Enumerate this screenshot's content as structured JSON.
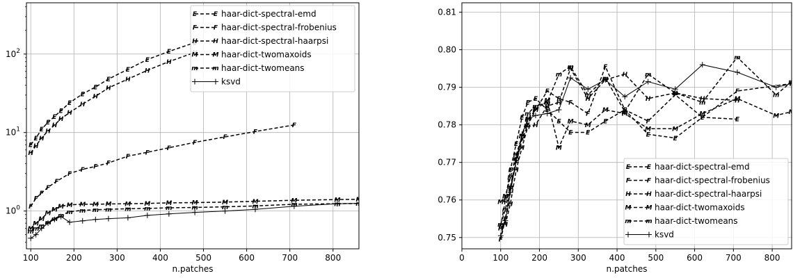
{
  "chart_data": [
    {
      "type": "line",
      "x_scale": "linear",
      "y_scale": "log",
      "xlabel": "n.patches",
      "ylabel": "",
      "xlim": [
        90,
        860
      ],
      "ylim": [
        0.33,
        450
      ],
      "x_ticks": [
        100,
        200,
        300,
        400,
        500,
        600,
        700,
        800
      ],
      "x_tick_labels": [
        "100",
        "200",
        "300",
        "400",
        "500",
        "600",
        "700",
        "800"
      ],
      "y_major_ticks": [
        1,
        10,
        100
      ],
      "y_tick_labels": [
        "10^0",
        "10^1",
        "10^2"
      ],
      "grid": true,
      "legend_position": "top-right",
      "series": [
        {
          "name": "haar-dict-spectral-emd",
          "marker": "E",
          "x": [
            100,
            112,
            125,
            140,
            155,
            170,
            190,
            220,
            250,
            280,
            325,
            370,
            420,
            480
          ],
          "y": [
            7.0,
            8.5,
            11.0,
            13.5,
            16.0,
            19.0,
            24.0,
            31.0,
            38.0,
            48.0,
            64.0,
            85.0,
            108.0,
            140.0
          ]
        },
        {
          "name": "haar-dict-spectral-frobenius",
          "marker": "F",
          "x": [
            100,
            112,
            125,
            140,
            160,
            190,
            220,
            250,
            280,
            325,
            370,
            420,
            480,
            550,
            620,
            710
          ],
          "y": [
            1.15,
            1.45,
            1.7,
            2.0,
            2.4,
            3.0,
            3.4,
            3.7,
            4.1,
            5.0,
            5.6,
            6.4,
            7.5,
            8.8,
            10.3,
            12.5
          ]
        },
        {
          "name": "haar-dict-spectral-haarpsi",
          "marker": "H",
          "x": [
            100,
            112,
            125,
            140,
            155,
            170,
            190,
            220,
            250,
            280,
            325,
            370,
            420,
            480
          ],
          "y": [
            5.5,
            6.8,
            8.5,
            10.5,
            12.5,
            15.0,
            18.0,
            23.0,
            29.0,
            37.0,
            48.0,
            62.0,
            80.0,
            105.0
          ]
        },
        {
          "name": "haar-dict-twomaxoids",
          "marker": "M",
          "x": [
            100,
            112,
            125,
            140,
            155,
            170,
            190,
            220,
            250,
            280,
            325,
            370,
            420,
            480,
            550,
            620,
            710,
            810,
            860
          ],
          "y": [
            0.6,
            0.7,
            0.8,
            0.95,
            1.05,
            1.15,
            1.2,
            1.22,
            1.22,
            1.23,
            1.24,
            1.25,
            1.27,
            1.28,
            1.3,
            1.33,
            1.37,
            1.4,
            1.41
          ]
        },
        {
          "name": "haar-dict-twomeans",
          "marker": "m",
          "x": [
            100,
            112,
            125,
            140,
            155,
            170,
            190,
            220,
            250,
            280,
            325,
            370,
            420,
            480,
            550,
            620,
            710,
            810,
            860
          ],
          "y": [
            0.55,
            0.6,
            0.65,
            0.72,
            0.8,
            0.88,
            0.98,
            1.02,
            1.04,
            1.05,
            1.07,
            1.08,
            1.1,
            1.11,
            1.13,
            1.16,
            1.22,
            1.24,
            1.25
          ]
        },
        {
          "name": "ksvd",
          "marker": "+",
          "x": [
            100,
            112,
            125,
            140,
            155,
            170,
            190,
            220,
            250,
            280,
            325,
            370,
            420,
            480,
            550,
            620,
            710,
            810,
            860
          ],
          "y": [
            0.45,
            0.5,
            0.6,
            0.7,
            0.78,
            0.85,
            0.72,
            0.75,
            0.78,
            0.8,
            0.82,
            0.88,
            0.92,
            0.96,
            1.0,
            1.05,
            1.15,
            1.24,
            1.25
          ]
        }
      ]
    },
    {
      "type": "line",
      "x_scale": "linear",
      "y_scale": "linear",
      "xlabel": "n.patches",
      "ylabel": "",
      "xlim": [
        0,
        850
      ],
      "ylim": [
        0.747,
        0.8125
      ],
      "x_ticks": [
        0,
        100,
        200,
        300,
        400,
        500,
        600,
        700,
        800
      ],
      "x_tick_labels": [
        "0",
        "100",
        "200",
        "300",
        "400",
        "500",
        "600",
        "700",
        "800"
      ],
      "y_ticks": [
        0.75,
        0.76,
        0.77,
        0.78,
        0.79,
        0.8,
        0.81
      ],
      "y_tick_labels": [
        "0.75",
        "0.76",
        "0.77",
        "0.78",
        "0.79",
        "0.80",
        "0.81"
      ],
      "grid": true,
      "legend_position": "lower-right",
      "series": [
        {
          "name": "haar-dict-spectral-emd",
          "marker": "E",
          "x": [
            100,
            112,
            125,
            140,
            155,
            170,
            190,
            220,
            250,
            280,
            325,
            370,
            420,
            480,
            550,
            620,
            710
          ],
          "y": [
            0.753,
            0.76,
            0.768,
            0.775,
            0.782,
            0.786,
            0.787,
            0.784,
            0.781,
            0.778,
            0.778,
            0.781,
            0.784,
            0.7775,
            0.7765,
            0.782,
            0.7815
          ]
        },
        {
          "name": "haar-dict-spectral-frobenius",
          "marker": "F",
          "x": [
            100,
            112,
            125,
            140,
            155,
            170,
            190,
            220,
            250,
            280,
            325,
            370,
            420,
            480,
            550,
            620,
            710,
            850
          ],
          "y": [
            0.7495,
            0.755,
            0.763,
            0.77,
            0.776,
            0.78,
            0.784,
            0.789,
            0.787,
            0.786,
            0.783,
            0.7955,
            0.784,
            0.781,
            0.788,
            0.782,
            0.789,
            0.791
          ]
        },
        {
          "name": "haar-dict-spectral-haarpsi",
          "marker": "H",
          "x": [
            100,
            112,
            125,
            140,
            155,
            170,
            190,
            220,
            250,
            280,
            325,
            370,
            420,
            480,
            550,
            620,
            710
          ],
          "y": [
            0.7525,
            0.7535,
            0.759,
            0.768,
            0.774,
            0.7795,
            0.78,
            0.785,
            0.786,
            0.795,
            0.787,
            0.792,
            0.7935,
            0.787,
            0.7885,
            0.787,
            0.7865
          ]
        },
        {
          "name": "haar-dict-twomaxoids",
          "marker": "M",
          "x": [
            100,
            112,
            125,
            140,
            155,
            170,
            190,
            220,
            250,
            280,
            325,
            370,
            420,
            480,
            550,
            620,
            710,
            810,
            850
          ],
          "y": [
            0.7595,
            0.761,
            0.766,
            0.772,
            0.777,
            0.7815,
            0.784,
            0.7865,
            0.774,
            0.781,
            0.78,
            0.784,
            0.783,
            0.779,
            0.779,
            0.783,
            0.787,
            0.7825,
            0.7835
          ]
        },
        {
          "name": "haar-dict-twomeans",
          "marker": "m",
          "x": [
            100,
            112,
            125,
            140,
            155,
            170,
            190,
            220,
            250,
            280,
            325,
            370,
            420,
            480,
            550,
            620,
            710,
            810,
            850
          ],
          "y": [
            0.7535,
            0.7575,
            0.7635,
            0.771,
            0.777,
            0.783,
            0.785,
            0.786,
            0.7935,
            0.7955,
            0.788,
            0.7925,
            0.7835,
            0.7935,
            0.7885,
            0.786,
            0.798,
            0.788,
            0.7915
          ]
        },
        {
          "name": "ksvd",
          "marker": "+",
          "x": [
            100,
            112,
            125,
            140,
            155,
            170,
            190,
            220,
            250,
            280,
            325,
            370,
            420,
            480,
            550,
            620,
            710,
            810,
            850
          ],
          "y": [
            0.7505,
            0.7545,
            0.762,
            0.7705,
            0.7775,
            0.7815,
            0.7825,
            0.783,
            0.784,
            0.7925,
            0.7895,
            0.792,
            0.7875,
            0.7915,
            0.7895,
            0.796,
            0.794,
            0.79,
            0.791
          ]
        }
      ]
    }
  ]
}
